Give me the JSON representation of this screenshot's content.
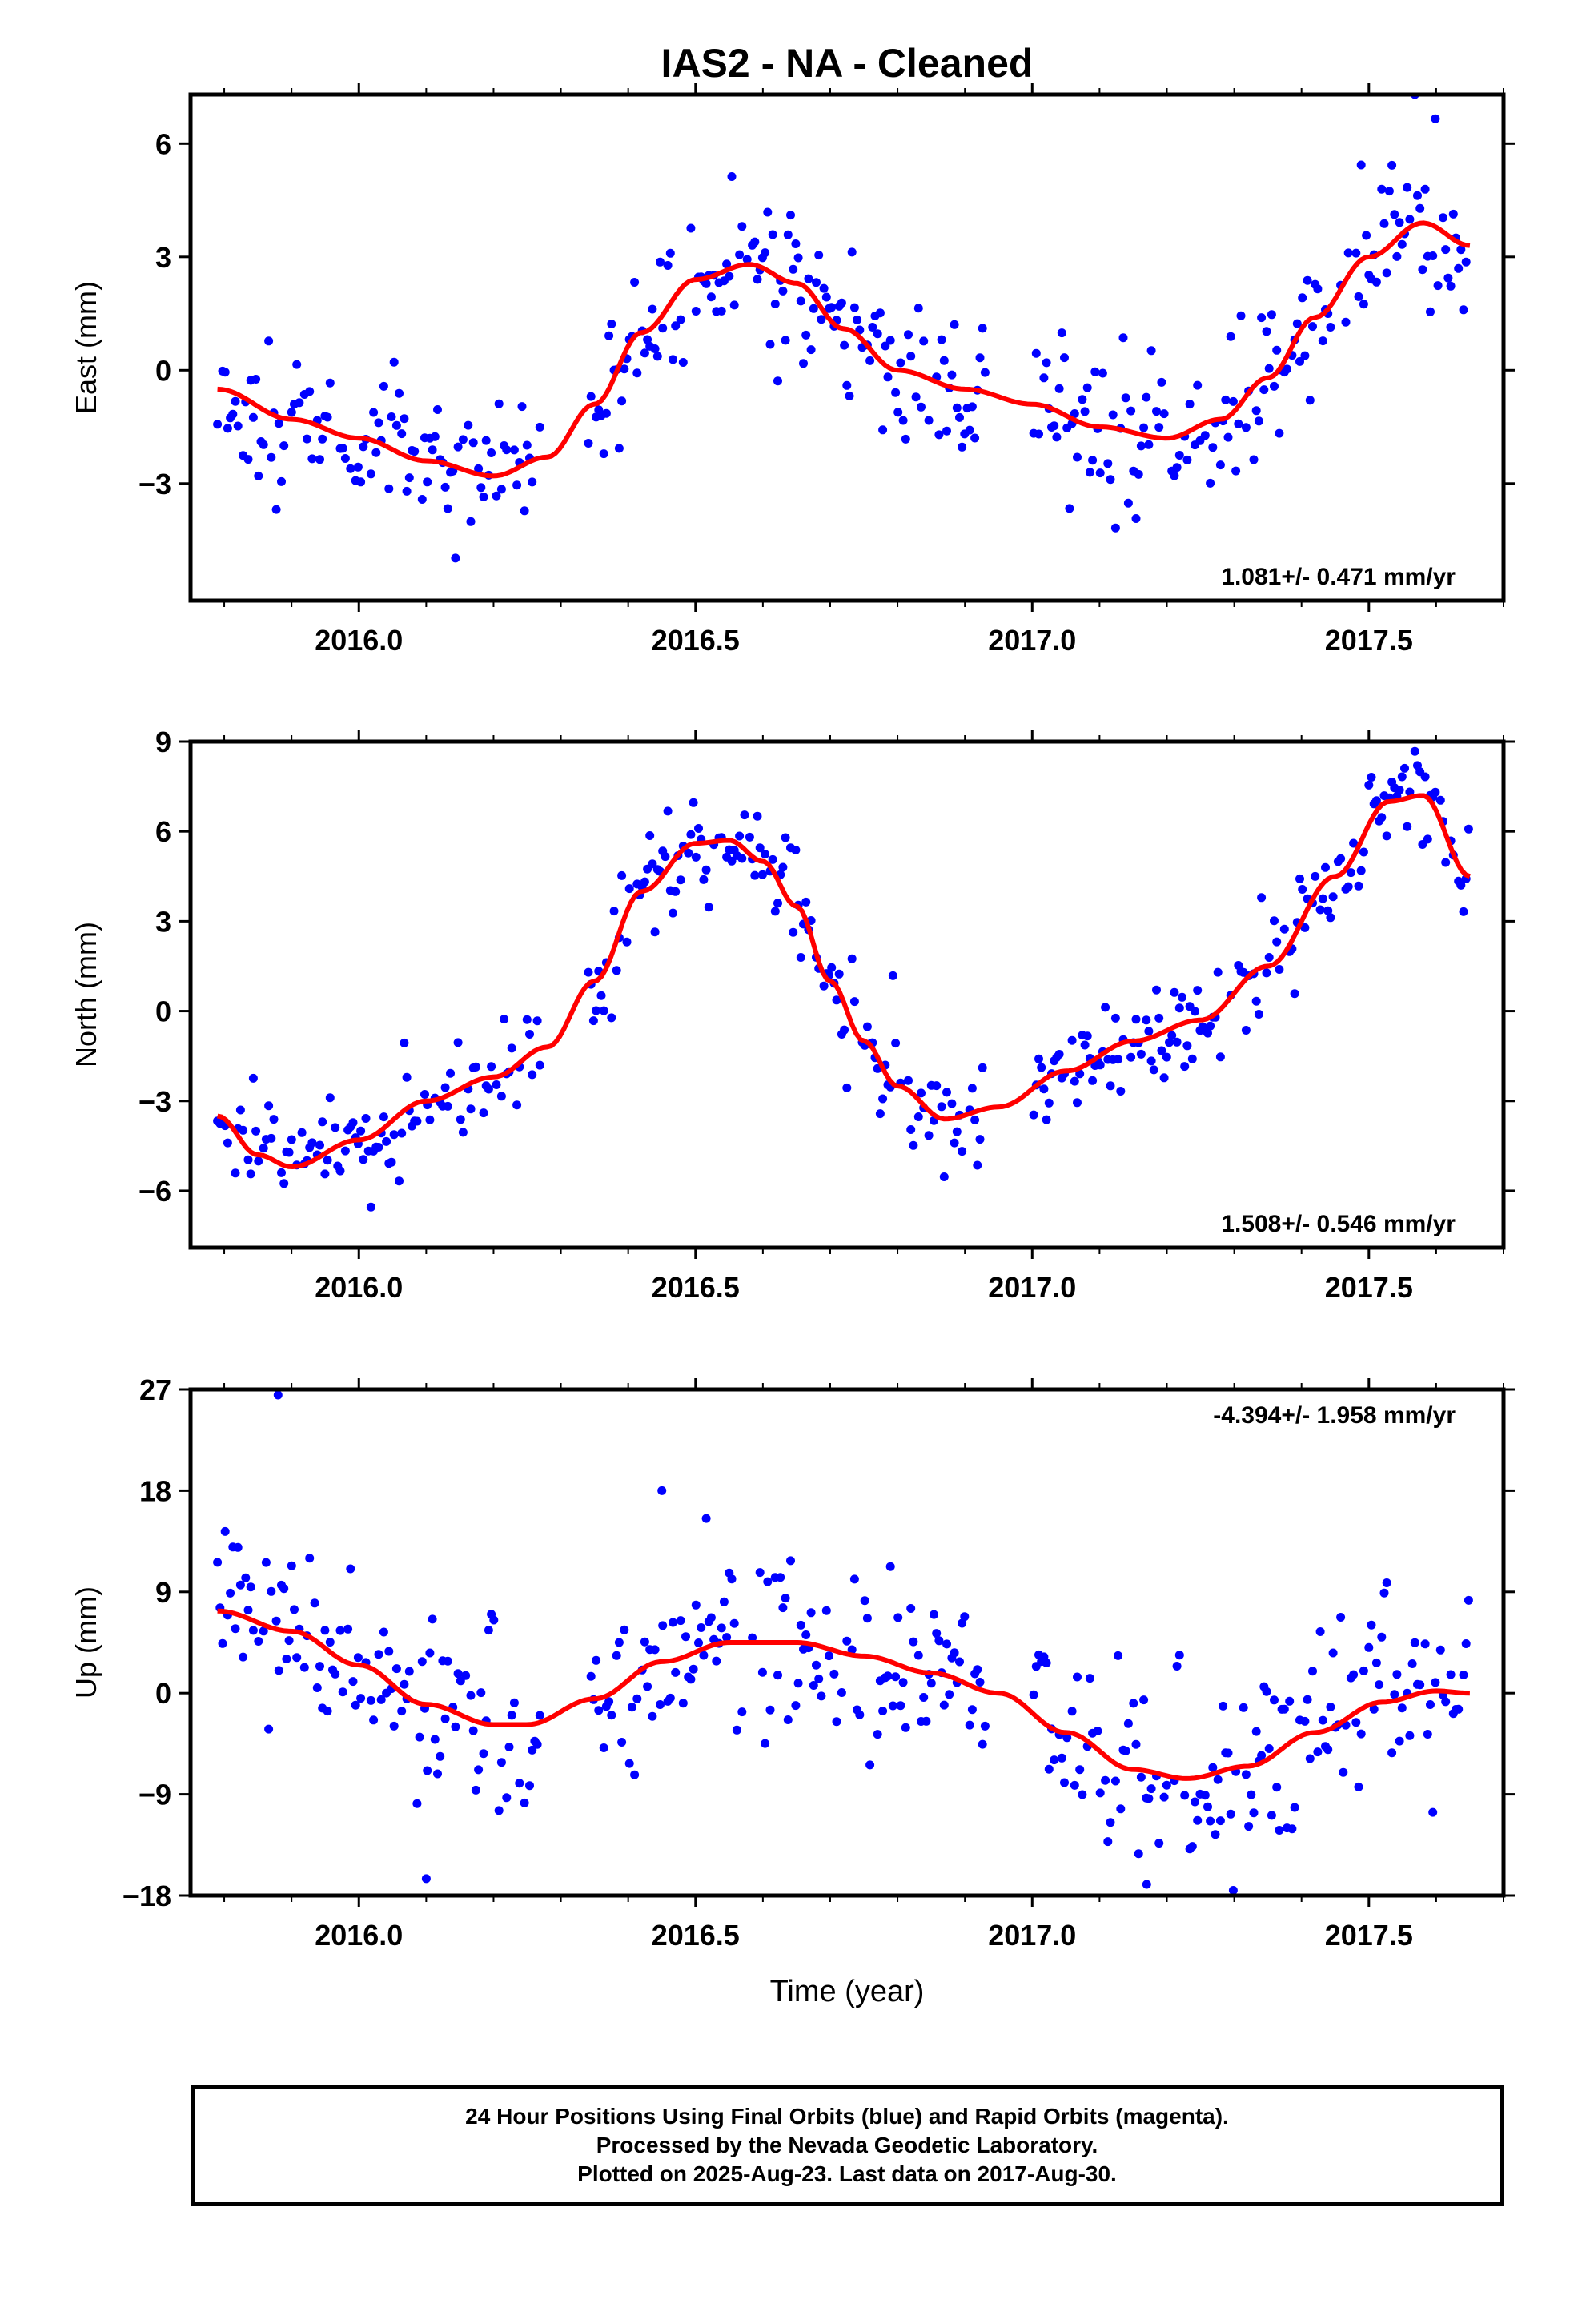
{
  "chart_data": [
    {
      "type": "scatter",
      "panel": "east",
      "title": "IAS2  - NA - Cleaned",
      "ylabel": "East (mm)",
      "xlabel": "",
      "xlim": [
        2015.75,
        2017.7
      ],
      "ylim": [
        -6.1,
        7.3
      ],
      "xticks": [
        2016.0,
        2016.5,
        2017.0,
        2017.5
      ],
      "xtick_labels": [
        "2016.0",
        "2016.5",
        "2017.0",
        "2017.5"
      ],
      "yticks": [
        6,
        3,
        0,
        -3
      ],
      "ytick_labels": [
        "6",
        "3",
        "0",
        "−3"
      ],
      "annotation": "1.081+/- 0.471 mm/yr",
      "annotation_position": "bottom-right",
      "colors": {
        "points": "#0000ff",
        "fit": "#ff0000"
      },
      "fit_curve": {
        "name": "model",
        "x": [
          2015.79,
          2015.9,
          2016.0,
          2016.1,
          2016.2,
          2016.28,
          2016.35,
          2016.42,
          2016.5,
          2016.58,
          2016.65,
          2016.72,
          2016.8,
          2016.9,
          2017.0,
          2017.1,
          2017.2,
          2017.28,
          2017.35,
          2017.42,
          2017.5,
          2017.58,
          2017.65
        ],
        "y": [
          -0.5,
          -1.3,
          -1.8,
          -2.4,
          -2.8,
          -2.3,
          -0.9,
          1.0,
          2.4,
          2.8,
          2.3,
          1.1,
          0.0,
          -0.5,
          -0.9,
          -1.5,
          -1.8,
          -1.3,
          -0.2,
          1.4,
          3.0,
          3.9,
          3.3
        ]
      },
      "points": {
        "name": "daily positions",
        "seed": 11,
        "jitter": 1.15,
        "gaps": [
          [
            2016.27,
            2016.34
          ],
          [
            2016.93,
            2017.0
          ]
        ],
        "x_start": 2015.79,
        "x_end": 2017.65,
        "step": 0.0038
      }
    },
    {
      "type": "scatter",
      "panel": "north",
      "ylabel": "North (mm)",
      "xlabel": "",
      "xlim": [
        2015.75,
        2017.7
      ],
      "ylim": [
        -7.9,
        9.0
      ],
      "xticks": [
        2016.0,
        2016.5,
        2017.0,
        2017.5
      ],
      "xtick_labels": [
        "2016.0",
        "2016.5",
        "2017.0",
        "2017.5"
      ],
      "yticks": [
        9,
        6,
        3,
        0,
        -3,
        -6
      ],
      "ytick_labels": [
        "9",
        "6",
        "3",
        "0",
        "−3",
        "−6"
      ],
      "annotation": "1.508+/- 0.546 mm/yr",
      "annotation_position": "bottom-right",
      "colors": {
        "points": "#0000ff",
        "fit": "#ff0000"
      },
      "fit_curve": {
        "name": "model",
        "x": [
          2015.79,
          2015.85,
          2015.9,
          2016.0,
          2016.1,
          2016.2,
          2016.28,
          2016.35,
          2016.42,
          2016.5,
          2016.55,
          2016.6,
          2016.65,
          2016.7,
          2016.75,
          2016.8,
          2016.87,
          2016.95,
          2017.05,
          2017.15,
          2017.25,
          2017.35,
          2017.45,
          2017.53,
          2017.58,
          2017.65
        ],
        "y": [
          -3.5,
          -4.8,
          -5.2,
          -4.3,
          -3.0,
          -2.2,
          -1.2,
          1.0,
          4.0,
          5.6,
          5.7,
          5.0,
          3.5,
          1.0,
          -1.0,
          -2.5,
          -3.6,
          -3.2,
          -2.0,
          -1.0,
          -0.3,
          1.5,
          4.5,
          7.0,
          7.2,
          4.5
        ]
      },
      "points": {
        "name": "daily positions",
        "seed": 29,
        "jitter": 1.0,
        "gaps": [
          [
            2016.27,
            2016.34
          ],
          [
            2016.93,
            2017.0
          ]
        ],
        "x_start": 2015.79,
        "x_end": 2017.65,
        "step": 0.0038
      }
    },
    {
      "type": "scatter",
      "panel": "up",
      "ylabel": "Up (mm)",
      "xlabel": "Time (year)",
      "xlim": [
        2015.75,
        2017.7
      ],
      "ylim": [
        -18,
        27
      ],
      "xticks": [
        2016.0,
        2016.5,
        2017.0,
        2017.5
      ],
      "xtick_labels": [
        "2016.0",
        "2016.5",
        "2017.0",
        "2017.5"
      ],
      "yticks": [
        27,
        18,
        9,
        0,
        -9,
        -18
      ],
      "ytick_labels": [
        "27",
        "18",
        "9",
        "0",
        "−9",
        "−18"
      ],
      "annotation": "-4.394+/- 1.958 mm/yr",
      "annotation_position": "top-right",
      "colors": {
        "points": "#0000ff",
        "fit": "#ff0000"
      },
      "fit_curve": {
        "name": "model",
        "x": [
          2015.79,
          2015.9,
          2016.0,
          2016.1,
          2016.2,
          2016.25,
          2016.35,
          2016.45,
          2016.55,
          2016.65,
          2016.75,
          2016.85,
          2016.95,
          2017.05,
          2017.15,
          2017.23,
          2017.32,
          2017.42,
          2017.52,
          2017.6,
          2017.65
        ],
        "y": [
          7.3,
          5.5,
          2.5,
          -1.0,
          -2.8,
          -2.8,
          -0.5,
          2.8,
          4.5,
          4.5,
          3.3,
          1.8,
          0.0,
          -3.5,
          -6.8,
          -7.6,
          -6.5,
          -3.5,
          -0.8,
          0.2,
          0.0
        ]
      },
      "points": {
        "name": "daily positions",
        "seed": 47,
        "jitter": 4.6,
        "gaps": [
          [
            2016.27,
            2016.34
          ],
          [
            2016.93,
            2017.0
          ]
        ],
        "x_start": 2015.79,
        "x_end": 2017.65,
        "step": 0.0038,
        "outliers": [
          [
            2015.88,
            26.5
          ],
          [
            2016.45,
            18.0
          ],
          [
            2016.1,
            -16.5
          ],
          [
            2017.17,
            -17.0
          ]
        ]
      }
    }
  ],
  "caption": {
    "line1": "24 Hour Positions Using Final Orbits (blue) and Rapid Orbits (magenta).",
    "line2": "Processed by the Nevada Geodetic Laboratory.",
    "line3": "Plotted on 2025-Aug-23. Last data on 2017-Aug-30."
  }
}
